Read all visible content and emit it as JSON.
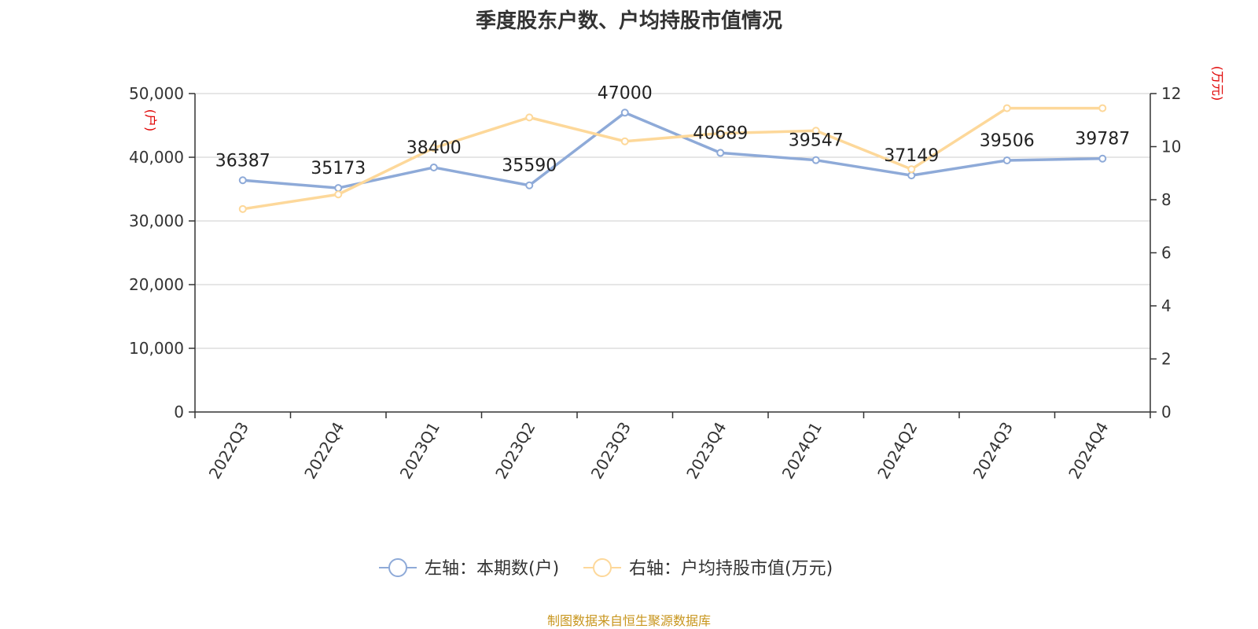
{
  "colors": {
    "left_series": "#8eaad8",
    "right_series": "#fdd89a",
    "unit_label": "#e00000",
    "source_text": "#c8961e",
    "grid": "#cccccc",
    "axis": "#333333"
  },
  "source": "制图数据来自恒生聚源数据库",
  "chart_data": {
    "type": "line",
    "title": "季度股东户数、户均持股市值情况",
    "categories": [
      "2022Q3",
      "2022Q4",
      "2023Q1",
      "2023Q2",
      "2023Q3",
      "2023Q4",
      "2024Q1",
      "2024Q2",
      "2024Q3",
      "2024Q4"
    ],
    "left_axis": {
      "unit": "(户)",
      "range": [
        0,
        50000
      ],
      "ticks": [
        0,
        10000,
        20000,
        30000,
        40000,
        50000
      ],
      "tick_labels": [
        "0",
        "10,000",
        "20,000",
        "30,000",
        "40,000",
        "50,000"
      ]
    },
    "right_axis": {
      "unit": "(万元)",
      "range": [
        0,
        12
      ],
      "ticks": [
        0,
        2,
        4,
        6,
        8,
        10,
        12
      ],
      "tick_labels": [
        "0",
        "2",
        "4",
        "6",
        "8",
        "10",
        "12"
      ]
    },
    "series": [
      {
        "name": "左轴：本期数(户)",
        "axis": "left",
        "values": [
          36387,
          35173,
          38400,
          35590,
          47000,
          40689,
          39547,
          37149,
          39506,
          39787
        ],
        "labels": [
          "36387",
          "35173",
          "38400",
          "35590",
          "47000",
          "40689",
          "39547",
          "37149",
          "39506",
          "39787"
        ]
      },
      {
        "name": "右轴：户均持股市值(万元)",
        "axis": "right",
        "values": [
          7.65,
          8.2,
          9.95,
          11.1,
          10.2,
          10.5,
          10.6,
          9.15,
          11.45,
          11.45
        ]
      }
    ],
    "grid": true,
    "legend_position": "bottom"
  }
}
